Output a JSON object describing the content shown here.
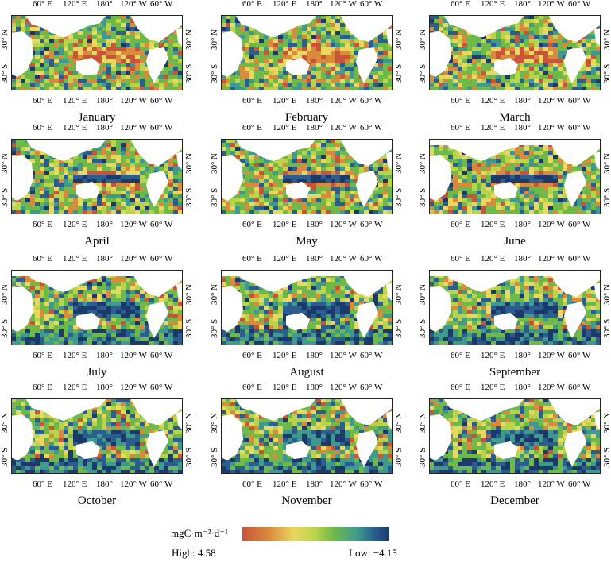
{
  "colors": {
    "high": "#c8553a",
    "orange": "#d98a3c",
    "yellow": "#e9d760",
    "light_green": "#b9d34a",
    "green": "#6fb94a",
    "teal": "#3f9a8d",
    "blue": "#2b5d8e",
    "low": "#1b3a6b",
    "land": "#ffffff"
  },
  "ticks": {
    "lon": [
      "60° E",
      "120° E",
      "180°",
      "120° W",
      "60° W"
    ],
    "lat_north": "30° N",
    "lat_south": "30° S"
  },
  "months": [
    "January",
    "February",
    "March",
    "April",
    "May",
    "June",
    "July",
    "August",
    "September",
    "October",
    "November",
    "December"
  ],
  "legend": {
    "unit": "mgC·m⁻²·d⁻¹",
    "high": "High: 4.58",
    "low": "Low: −4.15"
  }
}
